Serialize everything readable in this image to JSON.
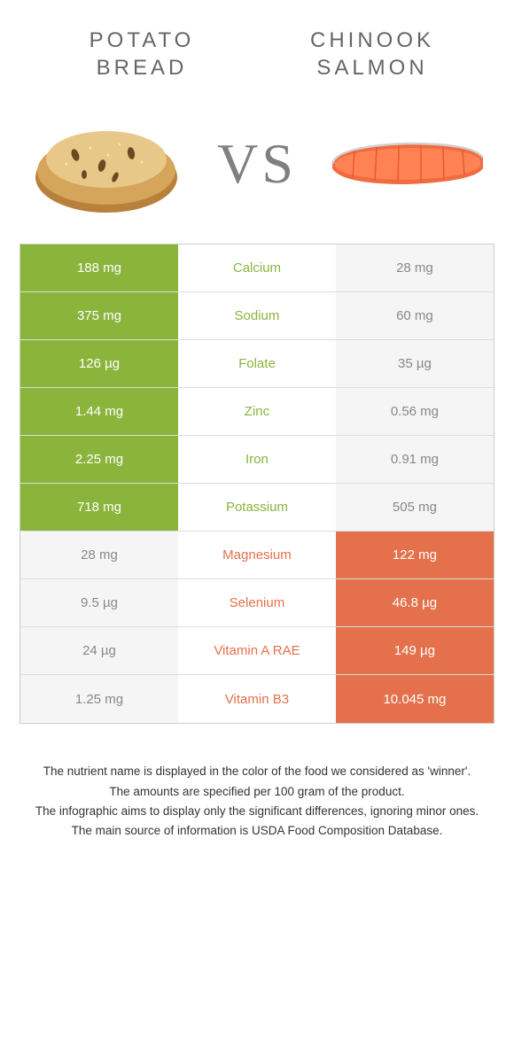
{
  "colors": {
    "left_color": "#8bb43c",
    "right_color": "#e4714b",
    "dim_bg": "#f5f5f5",
    "dim_text": "#888888",
    "title_text": "#666666",
    "vs_text": "#808080",
    "border": "#cccccc"
  },
  "header": {
    "left_title_l1": "POTATO",
    "left_title_l2": "BREAD",
    "right_title_l1": "CHINOOK",
    "right_title_l2": "SALMON",
    "vs": "VS"
  },
  "rows": [
    {
      "nutrient": "Calcium",
      "left": "188 mg",
      "right": "28 mg",
      "winner": "left"
    },
    {
      "nutrient": "Sodium",
      "left": "375 mg",
      "right": "60 mg",
      "winner": "left"
    },
    {
      "nutrient": "Folate",
      "left": "126 µg",
      "right": "35 µg",
      "winner": "left"
    },
    {
      "nutrient": "Zinc",
      "left": "1.44 mg",
      "right": "0.56 mg",
      "winner": "left"
    },
    {
      "nutrient": "Iron",
      "left": "2.25 mg",
      "right": "0.91 mg",
      "winner": "left"
    },
    {
      "nutrient": "Potassium",
      "left": "718 mg",
      "right": "505 mg",
      "winner": "left"
    },
    {
      "nutrient": "Magnesium",
      "left": "28 mg",
      "right": "122 mg",
      "winner": "right"
    },
    {
      "nutrient": "Selenium",
      "left": "9.5 µg",
      "right": "46.8 µg",
      "winner": "right"
    },
    {
      "nutrient": "Vitamin A RAE",
      "left": "24 µg",
      "right": "149 µg",
      "winner": "right"
    },
    {
      "nutrient": "Vitamin B3",
      "left": "1.25 mg",
      "right": "10.045 mg",
      "winner": "right"
    }
  ],
  "footnotes": [
    "The nutrient name is displayed in the color of the food we considered as 'winner'.",
    "The amounts are specified per 100 gram of the product.",
    "The infographic aims to display only the significant differences, ignoring minor ones.",
    "The main source of information is USDA Food Composition Database."
  ]
}
